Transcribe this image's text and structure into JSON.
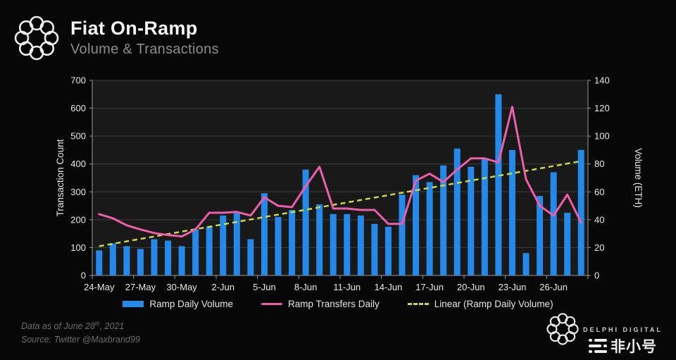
{
  "header": {
    "title": "Fiat On-Ramp",
    "subtitle": "Volume & Transactions"
  },
  "chart_data": {
    "type": "bar",
    "categories": [
      "24-May",
      "25-May",
      "26-May",
      "27-May",
      "28-May",
      "29-May",
      "30-May",
      "31-May",
      "1-Jun",
      "2-Jun",
      "3-Jun",
      "4-Jun",
      "5-Jun",
      "6-Jun",
      "7-Jun",
      "8-Jun",
      "9-Jun",
      "10-Jun",
      "11-Jun",
      "12-Jun",
      "13-Jun",
      "14-Jun",
      "15-Jun",
      "16-Jun",
      "17-Jun",
      "18-Jun",
      "19-Jun",
      "20-Jun",
      "21-Jun",
      "22-Jun",
      "23-Jun",
      "24-Jun",
      "25-Jun",
      "26-Jun",
      "27-Jun",
      "28-Jun"
    ],
    "x_tick_labels": [
      "24-May",
      "27-May",
      "30-May",
      "2-Jun",
      "5-Jun",
      "8-Jun",
      "11-Jun",
      "14-Jun",
      "17-Jun",
      "20-Jun",
      "23-Jun",
      "26-Jun"
    ],
    "series": [
      {
        "name": "Ramp Daily Volume",
        "type": "bar",
        "axis": "right",
        "color": "#2589e9",
        "values_eth": [
          18,
          23,
          21,
          19,
          26,
          25,
          21,
          33,
          35,
          43,
          45,
          26,
          59,
          42,
          47,
          76,
          51,
          44,
          44,
          43,
          37,
          35,
          58,
          72,
          67,
          79,
          91,
          78,
          84,
          130,
          90,
          16,
          57,
          74,
          45,
          90
        ]
      },
      {
        "name": "Ramp Transfers Daily",
        "type": "line",
        "axis": "left",
        "color": "#ec5fa8",
        "values": [
          220,
          205,
          180,
          165,
          152,
          145,
          140,
          165,
          225,
          225,
          228,
          215,
          280,
          250,
          245,
          320,
          390,
          240,
          240,
          235,
          235,
          185,
          185,
          340,
          365,
          335,
          380,
          420,
          420,
          405,
          605,
          345,
          250,
          215,
          290,
          190
        ]
      },
      {
        "name": "Linear (Ramp Daily Volume)",
        "type": "trendline",
        "axis": "left",
        "color": "#c9d74b",
        "start": 105,
        "end": 410
      }
    ],
    "left_axis": {
      "title": "Transaction Count",
      "min": 0,
      "max": 700,
      "ticks": [
        "0",
        "100",
        "200",
        "300",
        "400",
        "500",
        "600",
        "700"
      ]
    },
    "right_axis": {
      "title": "Volume (ETH)",
      "min": 0,
      "max": 140,
      "ticks": [
        "0",
        "20",
        "40",
        "60",
        "80",
        "100",
        "120",
        "140"
      ]
    },
    "grid": true,
    "legend_position": "bottom"
  },
  "footer": {
    "line1_prefix": "Data as of June 28",
    "line1_sup": "th",
    "line1_suffix": ", 2021",
    "line2": "Source:  Twitter @Maxbrand99"
  },
  "branding": {
    "delphi_text": "DELPHI DIGITAL",
    "watermark_text": "非小号"
  },
  "colors": {
    "page_bg": "#070707",
    "plot_bg": "#191919",
    "gridline": "#3d3d3d",
    "axis_line": "#9a9a9a",
    "axis_text": "#e8e8e8"
  }
}
